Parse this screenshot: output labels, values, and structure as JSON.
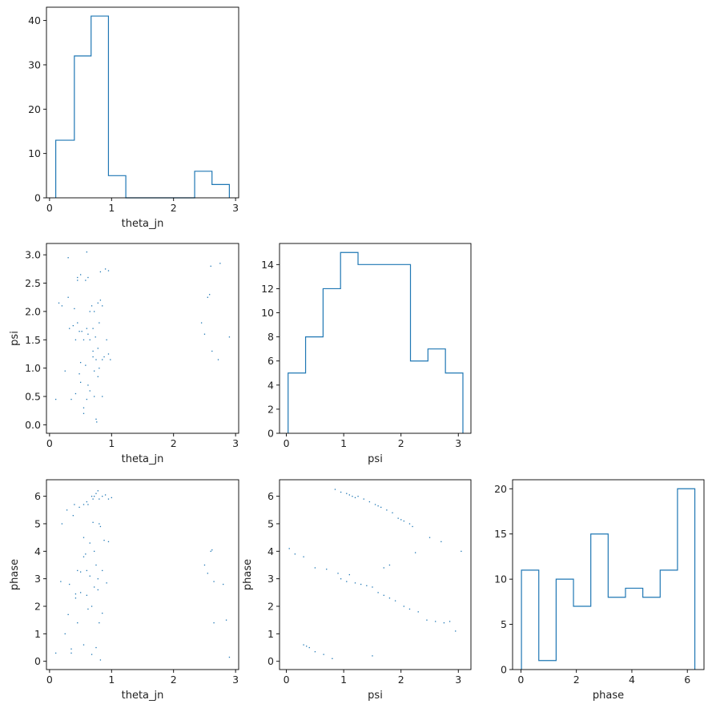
{
  "chart_data": [
    {
      "panel": "hist-theta_jn",
      "type": "bar",
      "histogram": true,
      "xlabel": "theta_jn",
      "ylabel": "",
      "xlim": [
        -0.05,
        3.05
      ],
      "ylim": [
        0,
        43
      ],
      "xticks": [
        0,
        1,
        2,
        3
      ],
      "yticks": [
        0,
        10,
        20,
        30,
        40
      ],
      "bin_edges": [
        0.1,
        0.4,
        0.67,
        0.95,
        1.23,
        1.5,
        1.78,
        2.06,
        2.34,
        2.62,
        2.9
      ],
      "values": [
        13,
        32,
        41,
        5,
        0,
        0,
        0,
        0,
        6,
        3
      ]
    },
    {
      "panel": "scatter-theta_jn-psi",
      "type": "scatter",
      "xlabel": "theta_jn",
      "ylabel": "psi",
      "xlim": [
        -0.05,
        3.05
      ],
      "ylim": [
        -0.15,
        3.2
      ],
      "xticks": [
        0,
        1,
        2,
        3
      ],
      "yticks": [
        0.0,
        0.5,
        1.0,
        1.5,
        2.0,
        2.5,
        3.0
      ],
      "points": [
        [
          0.15,
          2.15
        ],
        [
          0.2,
          2.1
        ],
        [
          0.25,
          0.95
        ],
        [
          0.1,
          0.45
        ],
        [
          0.3,
          2.95
        ],
        [
          0.3,
          2.25
        ],
        [
          0.32,
          1.7
        ],
        [
          0.35,
          0.45
        ],
        [
          0.38,
          1.75
        ],
        [
          0.4,
          2.05
        ],
        [
          0.42,
          0.55
        ],
        [
          0.42,
          1.5
        ],
        [
          0.45,
          1.8
        ],
        [
          0.45,
          2.55
        ],
        [
          0.45,
          2.6
        ],
        [
          0.48,
          0.9
        ],
        [
          0.48,
          1.65
        ],
        [
          0.5,
          2.65
        ],
        [
          0.5,
          1.1
        ],
        [
          0.5,
          0.75
        ],
        [
          0.52,
          1.65
        ],
        [
          0.55,
          1.5
        ],
        [
          0.55,
          0.3
        ],
        [
          0.55,
          0.2
        ],
        [
          0.58,
          2.55
        ],
        [
          0.58,
          1.05
        ],
        [
          0.6,
          3.05
        ],
        [
          0.6,
          1.7
        ],
        [
          0.6,
          0.45
        ],
        [
          0.62,
          2.6
        ],
        [
          0.62,
          1.6
        ],
        [
          0.62,
          0.7
        ],
        [
          0.65,
          2.0
        ],
        [
          0.65,
          1.5
        ],
        [
          0.65,
          0.6
        ],
        [
          0.68,
          2.1
        ],
        [
          0.7,
          1.7
        ],
        [
          0.7,
          1.3
        ],
        [
          0.7,
          1.2
        ],
        [
          0.72,
          2.0
        ],
        [
          0.72,
          0.95
        ],
        [
          0.72,
          0.5
        ],
        [
          0.74,
          1.55
        ],
        [
          0.75,
          1.15
        ],
        [
          0.75,
          0.1
        ],
        [
          0.76,
          0.05
        ],
        [
          0.78,
          2.15
        ],
        [
          0.78,
          1.35
        ],
        [
          0.78,
          0.85
        ],
        [
          0.8,
          1.8
        ],
        [
          0.8,
          1.0
        ],
        [
          0.82,
          2.7
        ],
        [
          0.82,
          2.2
        ],
        [
          0.85,
          2.1
        ],
        [
          0.85,
          1.15
        ],
        [
          0.85,
          0.5
        ],
        [
          0.88,
          1.2
        ],
        [
          0.9,
          2.75
        ],
        [
          0.92,
          1.5
        ],
        [
          0.95,
          1.25
        ],
        [
          0.98,
          1.15
        ],
        [
          0.95,
          2.72
        ],
        [
          2.45,
          1.8
        ],
        [
          2.5,
          1.6
        ],
        [
          2.55,
          2.25
        ],
        [
          2.58,
          2.3
        ],
        [
          2.6,
          2.8
        ],
        [
          2.62,
          1.3
        ],
        [
          2.72,
          1.15
        ],
        [
          2.75,
          2.85
        ],
        [
          2.9,
          1.55
        ]
      ]
    },
    {
      "panel": "hist-psi",
      "type": "bar",
      "histogram": true,
      "xlabel": "psi",
      "ylabel": "",
      "xlim": [
        -0.12,
        3.22
      ],
      "ylim": [
        0,
        15.75
      ],
      "xticks": [
        0,
        1,
        2,
        3
      ],
      "yticks": [
        0,
        2,
        4,
        6,
        8,
        10,
        12,
        14
      ],
      "bin_edges": [
        0.03,
        0.335,
        0.64,
        0.945,
        1.25,
        1.555,
        1.86,
        2.165,
        2.47,
        2.775,
        3.08
      ],
      "values": [
        5,
        8,
        12,
        15,
        14,
        14,
        14,
        6,
        7,
        5
      ]
    },
    {
      "panel": "scatter-theta_jn-phase",
      "type": "scatter",
      "xlabel": "theta_jn",
      "ylabel": "phase",
      "xlim": [
        -0.05,
        3.05
      ],
      "ylim": [
        -0.3,
        6.6
      ],
      "xticks": [
        0,
        1,
        2,
        3
      ],
      "yticks": [
        0,
        1,
        2,
        3,
        4,
        5,
        6
      ],
      "points": [
        [
          0.1,
          0.3
        ],
        [
          0.18,
          2.9
        ],
        [
          0.2,
          5.0
        ],
        [
          0.25,
          1.0
        ],
        [
          0.28,
          5.5
        ],
        [
          0.3,
          1.7
        ],
        [
          0.32,
          2.8
        ],
        [
          0.35,
          0.3
        ],
        [
          0.35,
          0.45
        ],
        [
          0.38,
          5.3
        ],
        [
          0.4,
          5.7
        ],
        [
          0.42,
          2.3
        ],
        [
          0.42,
          2.45
        ],
        [
          0.45,
          1.4
        ],
        [
          0.45,
          3.3
        ],
        [
          0.48,
          5.6
        ],
        [
          0.5,
          2.5
        ],
        [
          0.5,
          3.25
        ],
        [
          0.55,
          5.7
        ],
        [
          0.55,
          4.5
        ],
        [
          0.55,
          3.8
        ],
        [
          0.55,
          0.6
        ],
        [
          0.58,
          3.9
        ],
        [
          0.6,
          5.8
        ],
        [
          0.6,
          3.3
        ],
        [
          0.6,
          2.4
        ],
        [
          0.62,
          5.7
        ],
        [
          0.62,
          1.9
        ],
        [
          0.65,
          4.3
        ],
        [
          0.65,
          3.1
        ],
        [
          0.68,
          6.0
        ],
        [
          0.68,
          2.0
        ],
        [
          0.68,
          0.25
        ],
        [
          0.7,
          5.9
        ],
        [
          0.7,
          5.05
        ],
        [
          0.72,
          6.0
        ],
        [
          0.72,
          4.0
        ],
        [
          0.72,
          2.7
        ],
        [
          0.75,
          6.1
        ],
        [
          0.75,
          3.5
        ],
        [
          0.75,
          0.5
        ],
        [
          0.78,
          6.2
        ],
        [
          0.78,
          3.0
        ],
        [
          0.78,
          2.6
        ],
        [
          0.8,
          5.9
        ],
        [
          0.8,
          5.0
        ],
        [
          0.8,
          1.4
        ],
        [
          0.82,
          4.9
        ],
        [
          0.85,
          6.0
        ],
        [
          0.85,
          3.3
        ],
        [
          0.88,
          4.4
        ],
        [
          0.9,
          6.05
        ],
        [
          0.92,
          2.85
        ],
        [
          0.95,
          5.9
        ],
        [
          0.95,
          4.35
        ],
        [
          1.0,
          5.95
        ],
        [
          0.85,
          1.75
        ],
        [
          0.82,
          0.05
        ],
        [
          2.5,
          3.5
        ],
        [
          2.55,
          3.2
        ],
        [
          2.6,
          4.0
        ],
        [
          2.62,
          4.05
        ],
        [
          2.65,
          2.9
        ],
        [
          2.65,
          1.4
        ],
        [
          2.8,
          2.8
        ],
        [
          2.85,
          1.5
        ],
        [
          2.9,
          0.15
        ]
      ]
    },
    {
      "panel": "scatter-psi-phase",
      "type": "scatter",
      "xlabel": "psi",
      "ylabel": "phase",
      "xlim": [
        -0.12,
        3.22
      ],
      "ylim": [
        -0.3,
        6.6
      ],
      "xticks": [
        0,
        1,
        2,
        3
      ],
      "yticks": [
        0,
        1,
        2,
        3,
        4,
        5,
        6
      ],
      "points": [
        [
          0.05,
          4.1
        ],
        [
          0.15,
          3.9
        ],
        [
          0.3,
          3.8
        ],
        [
          0.5,
          3.4
        ],
        [
          0.7,
          3.35
        ],
        [
          0.9,
          3.2
        ],
        [
          0.95,
          3.0
        ],
        [
          1.05,
          2.9
        ],
        [
          1.1,
          3.15
        ],
        [
          1.2,
          2.85
        ],
        [
          1.3,
          2.8
        ],
        [
          1.4,
          2.75
        ],
        [
          1.5,
          2.7
        ],
        [
          1.6,
          2.5
        ],
        [
          1.7,
          2.4
        ],
        [
          1.8,
          2.3
        ],
        [
          1.9,
          2.2
        ],
        [
          2.05,
          2.0
        ],
        [
          2.15,
          1.9
        ],
        [
          2.3,
          1.8
        ],
        [
          2.45,
          1.5
        ],
        [
          2.6,
          1.45
        ],
        [
          2.75,
          1.4
        ],
        [
          2.85,
          1.45
        ],
        [
          2.95,
          1.1
        ],
        [
          3.05,
          4.0
        ],
        [
          0.85,
          6.25
        ],
        [
          0.95,
          6.15
        ],
        [
          1.05,
          6.1
        ],
        [
          1.15,
          6.0
        ],
        [
          1.25,
          6.0
        ],
        [
          1.35,
          5.9
        ],
        [
          1.45,
          5.8
        ],
        [
          1.55,
          5.7
        ],
        [
          1.65,
          5.6
        ],
        [
          1.75,
          5.5
        ],
        [
          1.85,
          5.4
        ],
        [
          1.95,
          5.2
        ],
        [
          2.05,
          5.1
        ],
        [
          2.15,
          5.0
        ],
        [
          2.2,
          4.9
        ],
        [
          2.25,
          3.95
        ],
        [
          2.5,
          4.5
        ],
        [
          2.7,
          4.35
        ],
        [
          1.1,
          6.05
        ],
        [
          1.2,
          5.95
        ],
        [
          1.7,
          3.4
        ],
        [
          1.8,
          3.5
        ],
        [
          1.5,
          0.2
        ],
        [
          0.3,
          0.6
        ],
        [
          0.4,
          0.5
        ],
        [
          0.5,
          0.35
        ],
        [
          0.65,
          0.25
        ],
        [
          0.8,
          0.1
        ],
        [
          0.35,
          0.55
        ],
        [
          1.6,
          5.65
        ],
        [
          2.0,
          5.15
        ]
      ]
    },
    {
      "panel": "hist-phase",
      "type": "bar",
      "histogram": true,
      "xlabel": "phase",
      "ylabel": "",
      "xlim": [
        -0.3,
        6.6
      ],
      "ylim": [
        0,
        21
      ],
      "xticks": [
        0,
        2,
        4,
        6
      ],
      "yticks": [
        0,
        5,
        10,
        15,
        20
      ],
      "bin_edges": [
        0.02,
        0.645,
        1.27,
        1.895,
        2.52,
        3.145,
        3.77,
        4.395,
        5.02,
        5.645,
        6.27
      ],
      "values": [
        11,
        1,
        10,
        7,
        15,
        8,
        9,
        8,
        11,
        20
      ]
    }
  ]
}
